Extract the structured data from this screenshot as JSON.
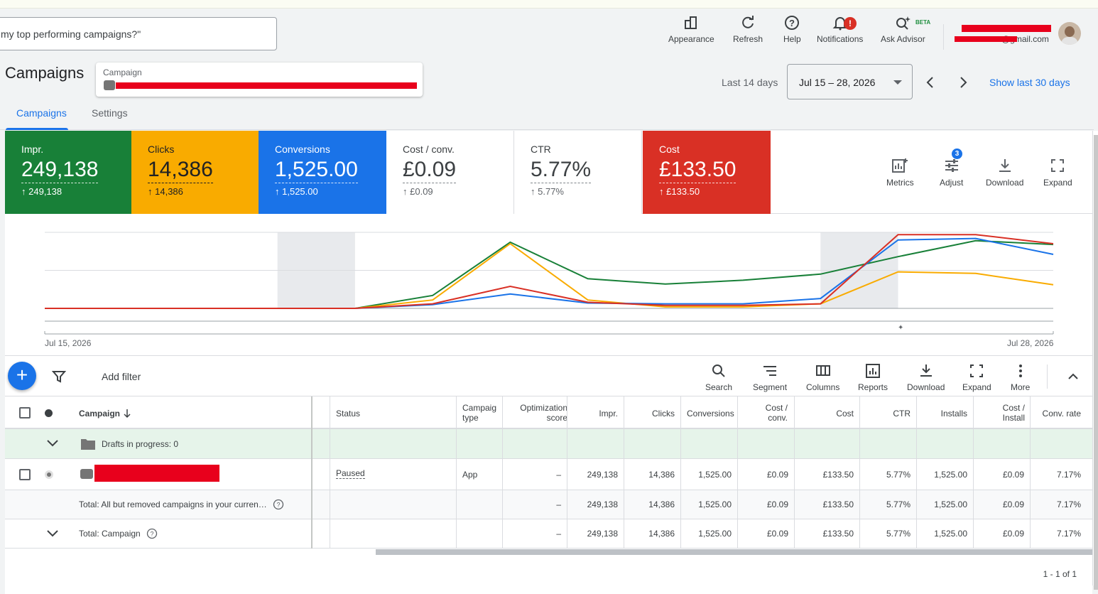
{
  "search": {
    "value": "my top performing campaigns?\""
  },
  "header_tools": [
    {
      "label": "Appearance",
      "icon": "appearance-icon"
    },
    {
      "label": "Refresh",
      "icon": "refresh-icon"
    },
    {
      "label": "Help",
      "icon": "help-icon"
    },
    {
      "label": "Notifications",
      "icon": "notifications-icon",
      "badge": "!"
    },
    {
      "label": "Ask Advisor",
      "icon": "ask-advisor-icon",
      "tag": "BETA"
    }
  ],
  "account": {
    "email_visible": "@gmail.com"
  },
  "page": {
    "title": "Campaigns",
    "campaign_label": "Campaign",
    "date_range_label": "Last 14 days",
    "date_range": "Jul 15 – 28, 2026",
    "show_last_30": "Show last 30 days"
  },
  "tabs": [
    "Campaigns",
    "Settings"
  ],
  "scorecards": [
    {
      "label": "Impr.",
      "value": "249,138",
      "delta": "249,138",
      "bg": "#188038",
      "style": "color"
    },
    {
      "label": "Clicks",
      "value": "14,386",
      "delta": "14,386",
      "bg": "#f9ab00",
      "style": "dark"
    },
    {
      "label": "Conversions",
      "value": "1,525.00",
      "delta": "1,525.00",
      "bg": "#1a73e8",
      "style": "color"
    },
    {
      "label": "Cost / conv.",
      "value": "£0.09",
      "delta": "£0.09",
      "bg": "#ffffff",
      "style": "white"
    },
    {
      "label": "CTR",
      "value": "5.77%",
      "delta": "5.77%",
      "bg": "#ffffff",
      "style": "white"
    },
    {
      "label": "Cost",
      "value": "£133.50",
      "delta": "£133.50",
      "bg": "#d93025",
      "style": "color"
    }
  ],
  "scorecard_tools": [
    {
      "label": "Metrics",
      "icon": "metrics-icon"
    },
    {
      "label": "Adjust",
      "icon": "adjust-icon",
      "badge": "3"
    },
    {
      "label": "Download",
      "icon": "download-icon"
    },
    {
      "label": "Expand",
      "icon": "expand-icon"
    }
  ],
  "chart_data": {
    "type": "line",
    "x": [
      "Jul 15",
      "Jul 16",
      "Jul 17",
      "Jul 18",
      "Jul 19",
      "Jul 20",
      "Jul 21",
      "Jul 22",
      "Jul 23",
      "Jul 24",
      "Jul 25",
      "Jul 26",
      "Jul 27",
      "Jul 28"
    ],
    "x_start_label": "Jul 15, 2026",
    "x_end_label": "Jul 28, 2026",
    "shaded_periods": [
      [
        "Jul 18",
        "Jul 19"
      ],
      [
        "Jul 25",
        "Jul 26"
      ]
    ],
    "ylim": [
      0,
      100
    ],
    "grid": true,
    "series": [
      {
        "color": "#188038",
        "values": [
          0,
          0,
          0,
          0,
          0,
          17,
          87,
          39,
          32,
          37,
          45,
          68,
          89,
          84
        ]
      },
      {
        "color": "#f9ab00",
        "values": [
          0,
          0,
          0,
          0,
          0,
          11,
          85,
          11,
          2,
          2,
          6,
          48,
          46,
          31
        ]
      },
      {
        "color": "#1a73e8",
        "values": [
          0,
          0,
          0,
          0,
          0,
          5,
          19,
          7,
          6,
          6,
          13,
          90,
          92,
          71
        ]
      },
      {
        "color": "#d93025",
        "values": [
          0,
          0,
          0,
          0,
          0,
          6,
          29,
          8,
          4,
          4,
          6,
          97,
          97,
          85
        ]
      }
    ]
  },
  "table_toolbar": {
    "add_filter": "Add filter",
    "tools": [
      {
        "label": "Search",
        "icon": "search-icon"
      },
      {
        "label": "Segment",
        "icon": "segment-icon"
      },
      {
        "label": "Columns",
        "icon": "columns-icon"
      },
      {
        "label": "Reports",
        "icon": "reports-icon"
      },
      {
        "label": "Download",
        "icon": "download-icon"
      },
      {
        "label": "Expand",
        "icon": "expand-icon"
      },
      {
        "label": "More",
        "icon": "more-icon"
      }
    ]
  },
  "table": {
    "headers": [
      "Campaign",
      "Status",
      "Campaig type",
      "Optimization score",
      "Impr.",
      "Clicks",
      "Conversions",
      "Cost / conv.",
      "Cost",
      "CTR",
      "Installs",
      "Cost / Install",
      "Conv. rate"
    ],
    "drafts_label": "Drafts in progress: 0",
    "rows": [
      {
        "status": "Paused",
        "type": "App",
        "opt": "–",
        "impr": "249,138",
        "clicks": "14,386",
        "conv": "1,525.00",
        "cpc": "£0.09",
        "cost": "£133.50",
        "ctr": "5.77%",
        "installs": "1,525.00",
        "cpi": "£0.09",
        "cr": "7.17%"
      }
    ],
    "totals": [
      {
        "label": "Total: All but removed campaigns in your curren…",
        "opt": "–",
        "impr": "249,138",
        "clicks": "14,386",
        "conv": "1,525.00",
        "cpc": "£0.09",
        "cost": "£133.50",
        "ctr": "5.77%",
        "installs": "1,525.00",
        "cpi": "£0.09",
        "cr": "7.17%"
      },
      {
        "label": "Total: Campaign",
        "opt": "–",
        "impr": "249,138",
        "clicks": "14,386",
        "conv": "1,525.00",
        "cpc": "£0.09",
        "cost": "£133.50",
        "ctr": "5.77%",
        "installs": "1,525.00",
        "cpi": "£0.09",
        "cr": "7.17%"
      }
    ],
    "pager": "1 - 1 of 1"
  }
}
